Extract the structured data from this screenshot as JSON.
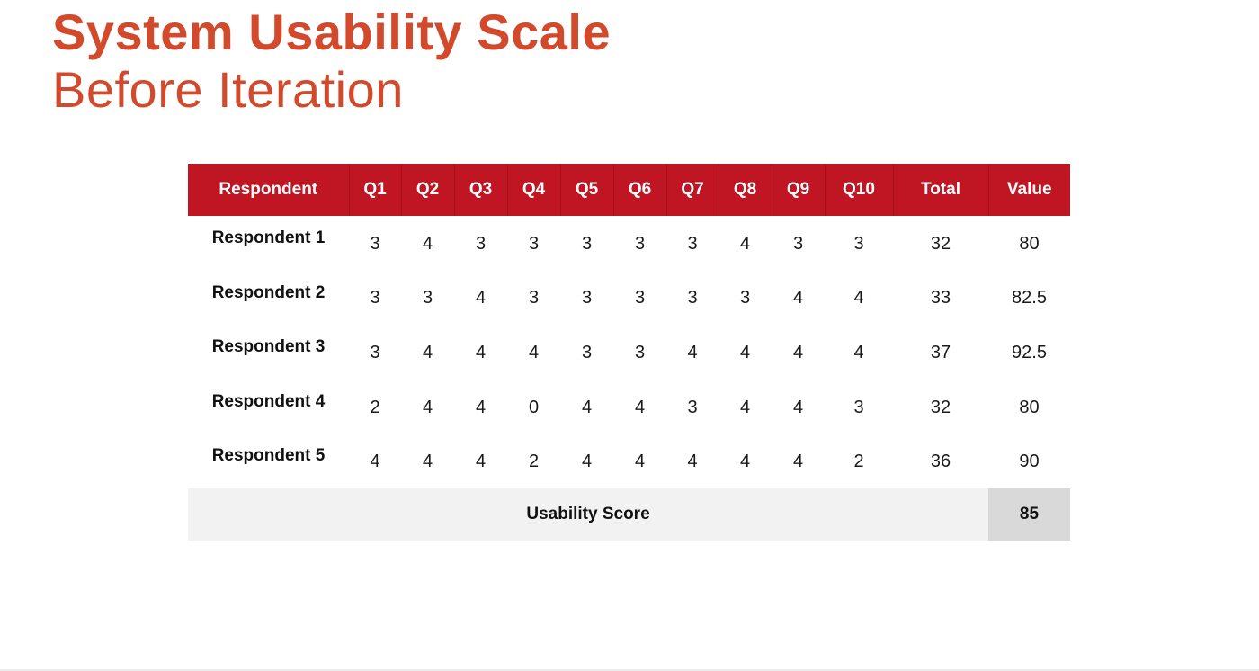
{
  "title": {
    "main": "System Usability Scale",
    "sub": "Before Iteration"
  },
  "table": {
    "headers": [
      "Respondent",
      "Q1",
      "Q2",
      "Q3",
      "Q4",
      "Q5",
      "Q6",
      "Q7",
      "Q8",
      "Q9",
      "Q10",
      "Total",
      "Value"
    ],
    "rows": [
      {
        "name": "Respondent 1",
        "cells": [
          "3",
          "4",
          "3",
          "3",
          "3",
          "3",
          "3",
          "4",
          "3",
          "3",
          "32",
          "80"
        ]
      },
      {
        "name": "Respondent 2",
        "cells": [
          "3",
          "3",
          "4",
          "3",
          "3",
          "3",
          "3",
          "3",
          "4",
          "4",
          "33",
          "82.5"
        ]
      },
      {
        "name": "Respondent 3",
        "cells": [
          "3",
          "4",
          "4",
          "4",
          "3",
          "3",
          "4",
          "4",
          "4",
          "4",
          "37",
          "92.5"
        ]
      },
      {
        "name": "Respondent 4",
        "cells": [
          "2",
          "4",
          "4",
          "0",
          "4",
          "4",
          "3",
          "4",
          "4",
          "3",
          "32",
          "80"
        ]
      },
      {
        "name": "Respondent 5",
        "cells": [
          "4",
          "4",
          "4",
          "2",
          "4",
          "4",
          "4",
          "4",
          "4",
          "2",
          "36",
          "90"
        ]
      }
    ],
    "score_label": "Usability Score",
    "score_value": "85"
  },
  "colors": {
    "title": "#d24a2b",
    "header_bg": "#c01623",
    "score_row_bg": "#f2f2f2",
    "score_value_bg": "#d9d9d9"
  }
}
